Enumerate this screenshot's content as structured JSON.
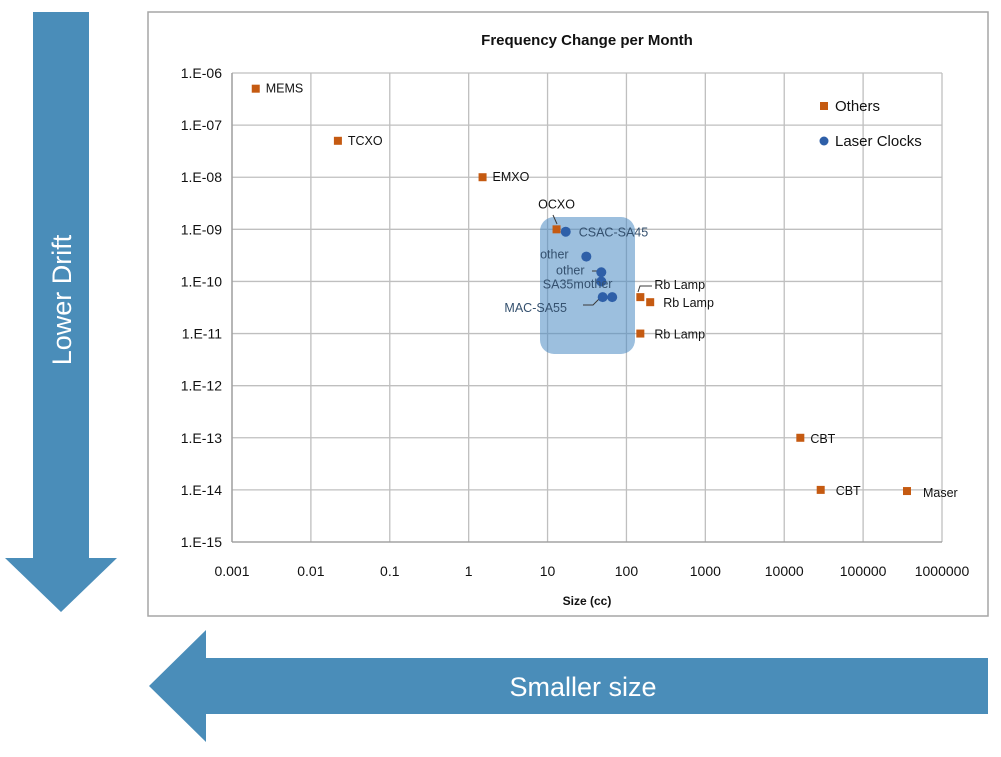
{
  "colors": {
    "others": "#c55a11",
    "laser": "#2e5fa8",
    "highlight": "#4a8bc2",
    "arrow": "#4a8db9",
    "grid": "#bfbfbf",
    "border": "#a6a6a6"
  },
  "arrows": {
    "vertical_label": "Lower Drift",
    "horizontal_label": "Smaller size"
  },
  "chart_data": {
    "type": "scatter",
    "title": "Frequency Change per Month",
    "xlabel": "Size (cc)",
    "ylabel": "",
    "xscale": "log",
    "yscale": "log",
    "xlim": [
      0.001,
      1000000
    ],
    "ylim": [
      1e-15,
      1e-06
    ],
    "grid": true,
    "legend_position": "top-right",
    "x_tick_labels": [
      "0.001",
      "0.01",
      "0.1",
      "1",
      "10",
      "100",
      "1000",
      "10000",
      "100000",
      "1000000"
    ],
    "x_ticks": [
      0.001,
      0.01,
      0.1,
      1,
      10,
      100,
      1000,
      10000,
      100000,
      1000000
    ],
    "y_tick_labels": [
      "1.E-06",
      "1.E-07",
      "1.E-08",
      "1.E-09",
      "1.E-10",
      "1.E-11",
      "1.E-12",
      "1.E-13",
      "1.E-14",
      "1.E-15"
    ],
    "y_ticks": [
      1e-06,
      1e-07,
      1e-08,
      1e-09,
      1e-10,
      1e-11,
      1e-12,
      1e-13,
      1e-14,
      1e-15
    ],
    "series": [
      {
        "name": "Others",
        "marker": "square",
        "points": [
          {
            "x": 0.002,
            "y": 5e-07,
            "label": "MEMS"
          },
          {
            "x": 0.022,
            "y": 5e-08,
            "label": "TCXO"
          },
          {
            "x": 1.5,
            "y": 1e-08,
            "label": "EMXO"
          },
          {
            "x": 13,
            "y": 1e-09,
            "label": "OCXO"
          },
          {
            "x": 150,
            "y": 5e-11,
            "label": "Rb Lamp"
          },
          {
            "x": 200,
            "y": 4e-11,
            "label": "Rb Lamp"
          },
          {
            "x": 150,
            "y": 1e-11,
            "label": "Rb Lamp"
          },
          {
            "x": 16000,
            "y": 1e-13,
            "label": "CBT"
          },
          {
            "x": 29000,
            "y": 1e-14,
            "label": "CBT"
          },
          {
            "x": 360000,
            "y": 9.5e-15,
            "label": "Maser"
          }
        ]
      },
      {
        "name": "Laser Clocks",
        "marker": "circle",
        "points": [
          {
            "x": 17,
            "y": 9e-10,
            "label": "CSAC-SA45"
          },
          {
            "x": 31,
            "y": 3e-10,
            "label": "other"
          },
          {
            "x": 48,
            "y": 1.5e-10,
            "label": "other"
          },
          {
            "x": 48,
            "y": 1e-10,
            "label": "SA35m"
          },
          {
            "x": 50,
            "y": 5e-11,
            "label": "MAC-SA55"
          },
          {
            "x": 66,
            "y": 5e-11,
            "label": "other"
          }
        ]
      }
    ],
    "highlight_region": {
      "x": [
        9,
        120
      ],
      "y": [
        9e-12,
        1.3e-09
      ]
    }
  }
}
